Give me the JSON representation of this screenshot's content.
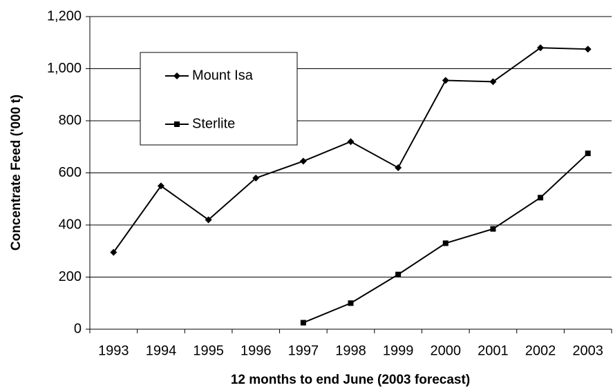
{
  "chart_data": {
    "type": "line",
    "x_label": "12 months to end June (2003 forecast)",
    "y_label": "Concentrate Feed ('000 t)",
    "categories": [
      "1993",
      "1994",
      "1995",
      "1996",
      "1997",
      "1998",
      "1999",
      "2000",
      "2001",
      "2002",
      "2003"
    ],
    "series": [
      {
        "name": "Mount Isa",
        "color": "#000000",
        "marker": "diamond",
        "values": [
          295,
          550,
          420,
          580,
          645,
          720,
          620,
          955,
          950,
          1080,
          1075
        ]
      },
      {
        "name": "Sterlite",
        "color": "#000000",
        "marker": "square",
        "values": [
          null,
          null,
          null,
          null,
          25,
          100,
          210,
          330,
          385,
          505,
          675
        ]
      }
    ],
    "ylim": [
      0,
      1200
    ],
    "yticks": [
      0,
      200,
      400,
      600,
      800,
      {
        "value": 1000,
        "label": "1,000"
      },
      {
        "value": 1200,
        "label": "1,200"
      }
    ],
    "grid": true,
    "legend": "upper left"
  }
}
